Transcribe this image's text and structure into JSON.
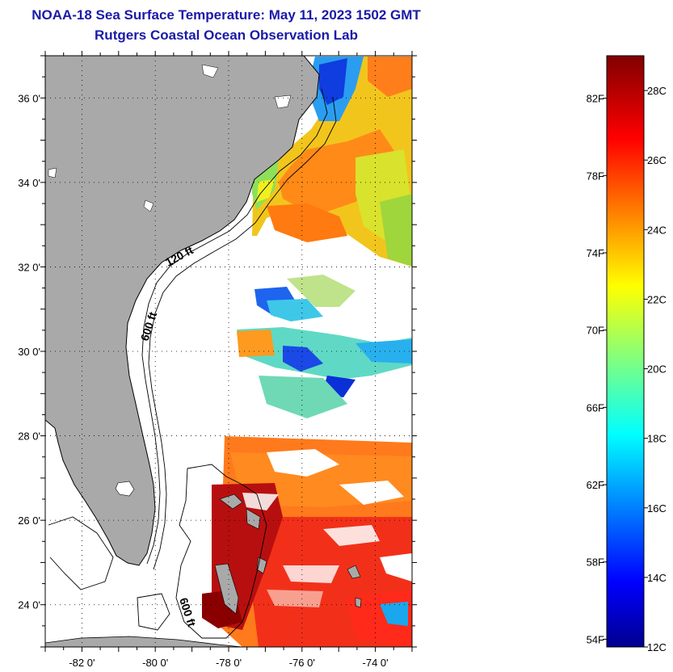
{
  "title": {
    "line1": "NOAA-18 Sea Surface Temperature:  May 11, 2023 1502 GMT",
    "line2": "Rutgers Coastal Ocean Observation Lab"
  },
  "map": {
    "lat_range": [
      23.0,
      37.0
    ],
    "lon_range": [
      -83.0,
      -73.0
    ],
    "lat_labels": [
      "36 0'",
      "34 0'",
      "32 0'",
      "30 0'",
      "28 0'",
      "26 0'",
      "24 0'"
    ],
    "lat_values": [
      36,
      34,
      32,
      30,
      28,
      26,
      24
    ],
    "lon_labels": [
      "-82 0'",
      "-80 0'",
      "-78 0'",
      "-76 0'",
      "-74 0'"
    ],
    "lon_values": [
      -82,
      -80,
      -78,
      -76,
      -74
    ],
    "contour_labels": [
      "120 ft",
      "600 ft",
      "600 ft"
    ],
    "colors": {
      "land": "#a9a9a9",
      "ocean_nodata": "#ffffff",
      "grid": "#000000"
    }
  },
  "colorbar": {
    "range_c": [
      12,
      29
    ],
    "fahrenheit_labels": [
      "82F",
      "78F",
      "74F",
      "70F",
      "66F",
      "62F",
      "58F",
      "54F"
    ],
    "fahrenheit_values": [
      82,
      78,
      74,
      70,
      66,
      62,
      58,
      54
    ],
    "celsius_labels": [
      "28C",
      "26C",
      "24C",
      "22C",
      "20C",
      "18C",
      "16C",
      "14C",
      "12C"
    ],
    "celsius_values": [
      28,
      26,
      24,
      22,
      20,
      18,
      16,
      14,
      12
    ],
    "colormap": "jet"
  }
}
